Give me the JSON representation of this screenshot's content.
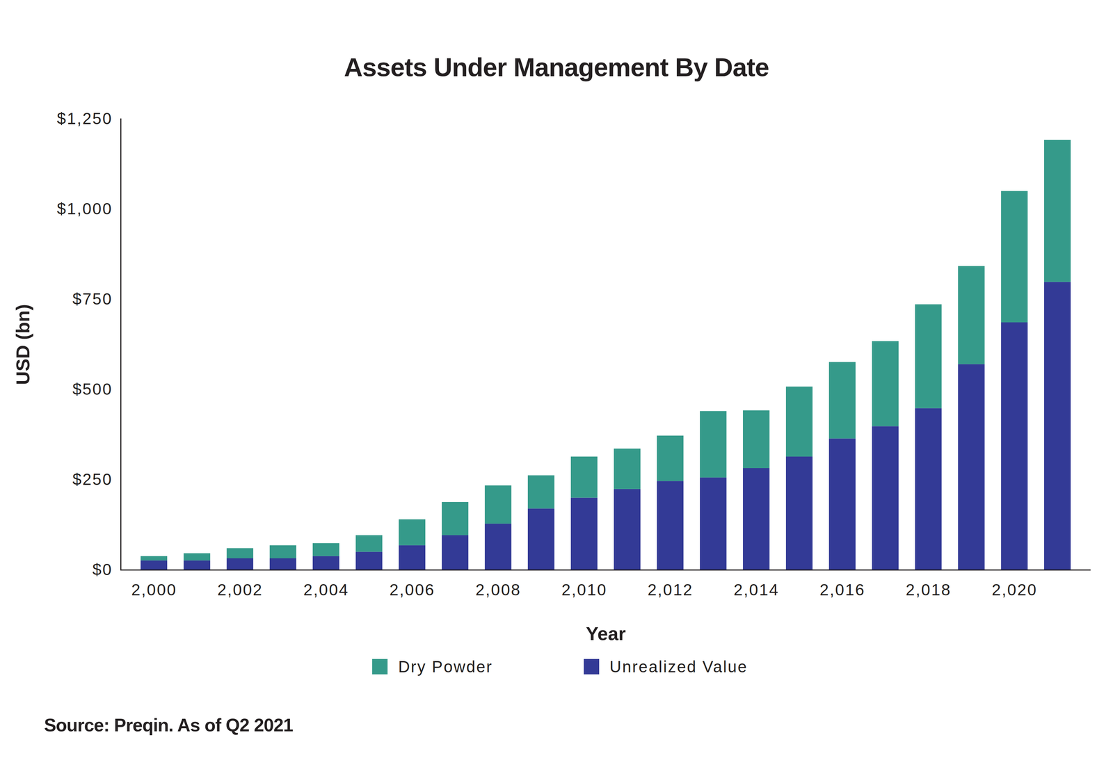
{
  "chart_data": {
    "type": "bar",
    "title": "Assets Under Management By Date",
    "xlabel": "Year",
    "ylabel": "USD (bn)",
    "source": "Source: Preqin. As of Q2 2021",
    "categories": [
      2000,
      null,
      2002,
      null,
      2004,
      null,
      2006,
      null,
      2008,
      null,
      2010,
      null,
      2012,
      null,
      2014,
      null,
      2016,
      null,
      2018,
      null,
      2020,
      null
    ],
    "stacked": true,
    "series": [
      {
        "name": "Dry Powder",
        "color": "#359a8a",
        "values": [
          12,
          20,
          28,
          36,
          36,
          46,
          72,
          92,
          106,
          92,
          114,
          112,
          126,
          184,
          160,
          194,
          212,
          236,
          288,
          272,
          364,
          394
        ]
      },
      {
        "name": "Unrealized Value",
        "color": "#333a96",
        "values": [
          26,
          26,
          32,
          32,
          38,
          50,
          68,
          96,
          128,
          170,
          200,
          224,
          246,
          256,
          282,
          314,
          364,
          398,
          448,
          570,
          686,
          798
        ]
      }
    ],
    "ylim": [
      0,
      1250
    ],
    "yticks": [
      {
        "value": 0,
        "label": "$0"
      },
      {
        "value": 250,
        "label": "$250"
      },
      {
        "value": 500,
        "label": "$500"
      },
      {
        "value": 750,
        "label": "$750"
      },
      {
        "value": 1000,
        "label": "$1,000"
      },
      {
        "value": 1250,
        "label": "$1,250"
      }
    ],
    "grid": false,
    "legend": "bottom"
  }
}
